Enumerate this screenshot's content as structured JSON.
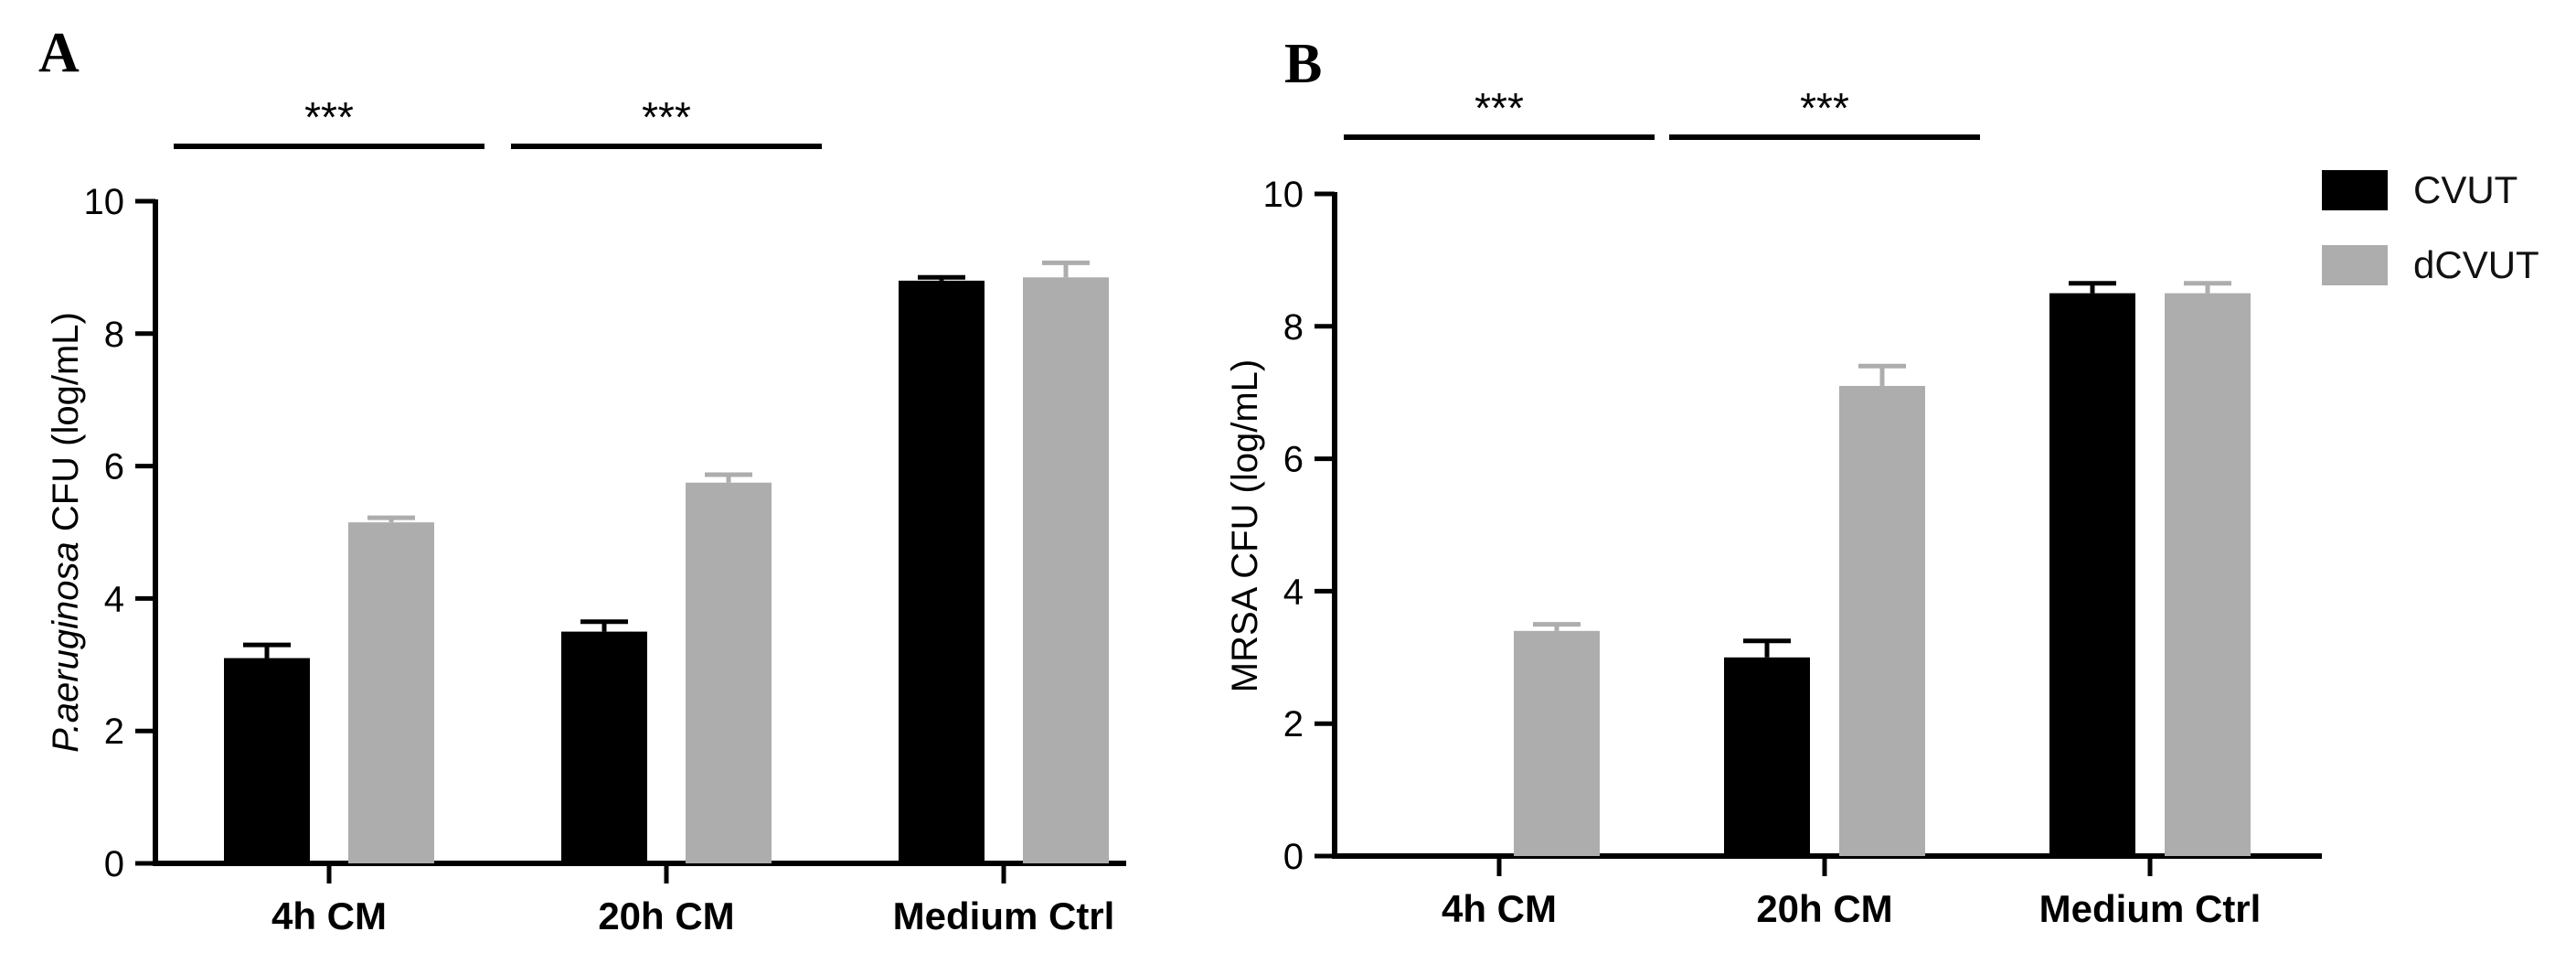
{
  "colors": {
    "CVUT": "#000000",
    "dCVUT": "#adadad"
  },
  "legend": [
    {
      "label": "CVUT",
      "color": "#000000"
    },
    {
      "label": "dCVUT",
      "color": "#adadad"
    }
  ],
  "chart_data": [
    {
      "type": "bar",
      "panel": "A",
      "ylabel_italic": "P.aeruginosa",
      "ylabel_rest": " CFU (log/mL)",
      "categories": [
        "4h CM",
        "20h CM",
        "Medium Ctrl"
      ],
      "ylim": [
        0,
        10
      ],
      "yticks": [
        "0",
        "2",
        "4",
        "6",
        "8",
        "10"
      ],
      "series": [
        {
          "name": "CVUT",
          "values": [
            3.1,
            3.5,
            8.8
          ],
          "errors": [
            0.2,
            0.15,
            0.05
          ]
        },
        {
          "name": "dCVUT",
          "values": [
            5.15,
            5.75,
            8.85
          ],
          "errors": [
            0.07,
            0.12,
            0.22
          ]
        }
      ],
      "significance": [
        {
          "category": "4h CM",
          "label": "***"
        },
        {
          "category": "20h CM",
          "label": "***"
        }
      ]
    },
    {
      "type": "bar",
      "panel": "B",
      "ylabel_italic": "",
      "ylabel_rest": "MRSA CFU (log/mL)",
      "categories": [
        "4h CM",
        "20h CM",
        "Medium Ctrl"
      ],
      "ylim": [
        0,
        10
      ],
      "yticks": [
        "0",
        "2",
        "4",
        "6",
        "8",
        "10"
      ],
      "series": [
        {
          "name": "CVUT",
          "values": [
            0,
            3.0,
            8.5
          ],
          "errors": [
            0,
            0.25,
            0.15
          ]
        },
        {
          "name": "dCVUT",
          "values": [
            3.4,
            7.1,
            8.5
          ],
          "errors": [
            0.1,
            0.3,
            0.15
          ]
        }
      ],
      "significance": [
        {
          "category": "4h CM",
          "label": "***"
        },
        {
          "category": "20h CM",
          "label": "***"
        }
      ]
    }
  ]
}
